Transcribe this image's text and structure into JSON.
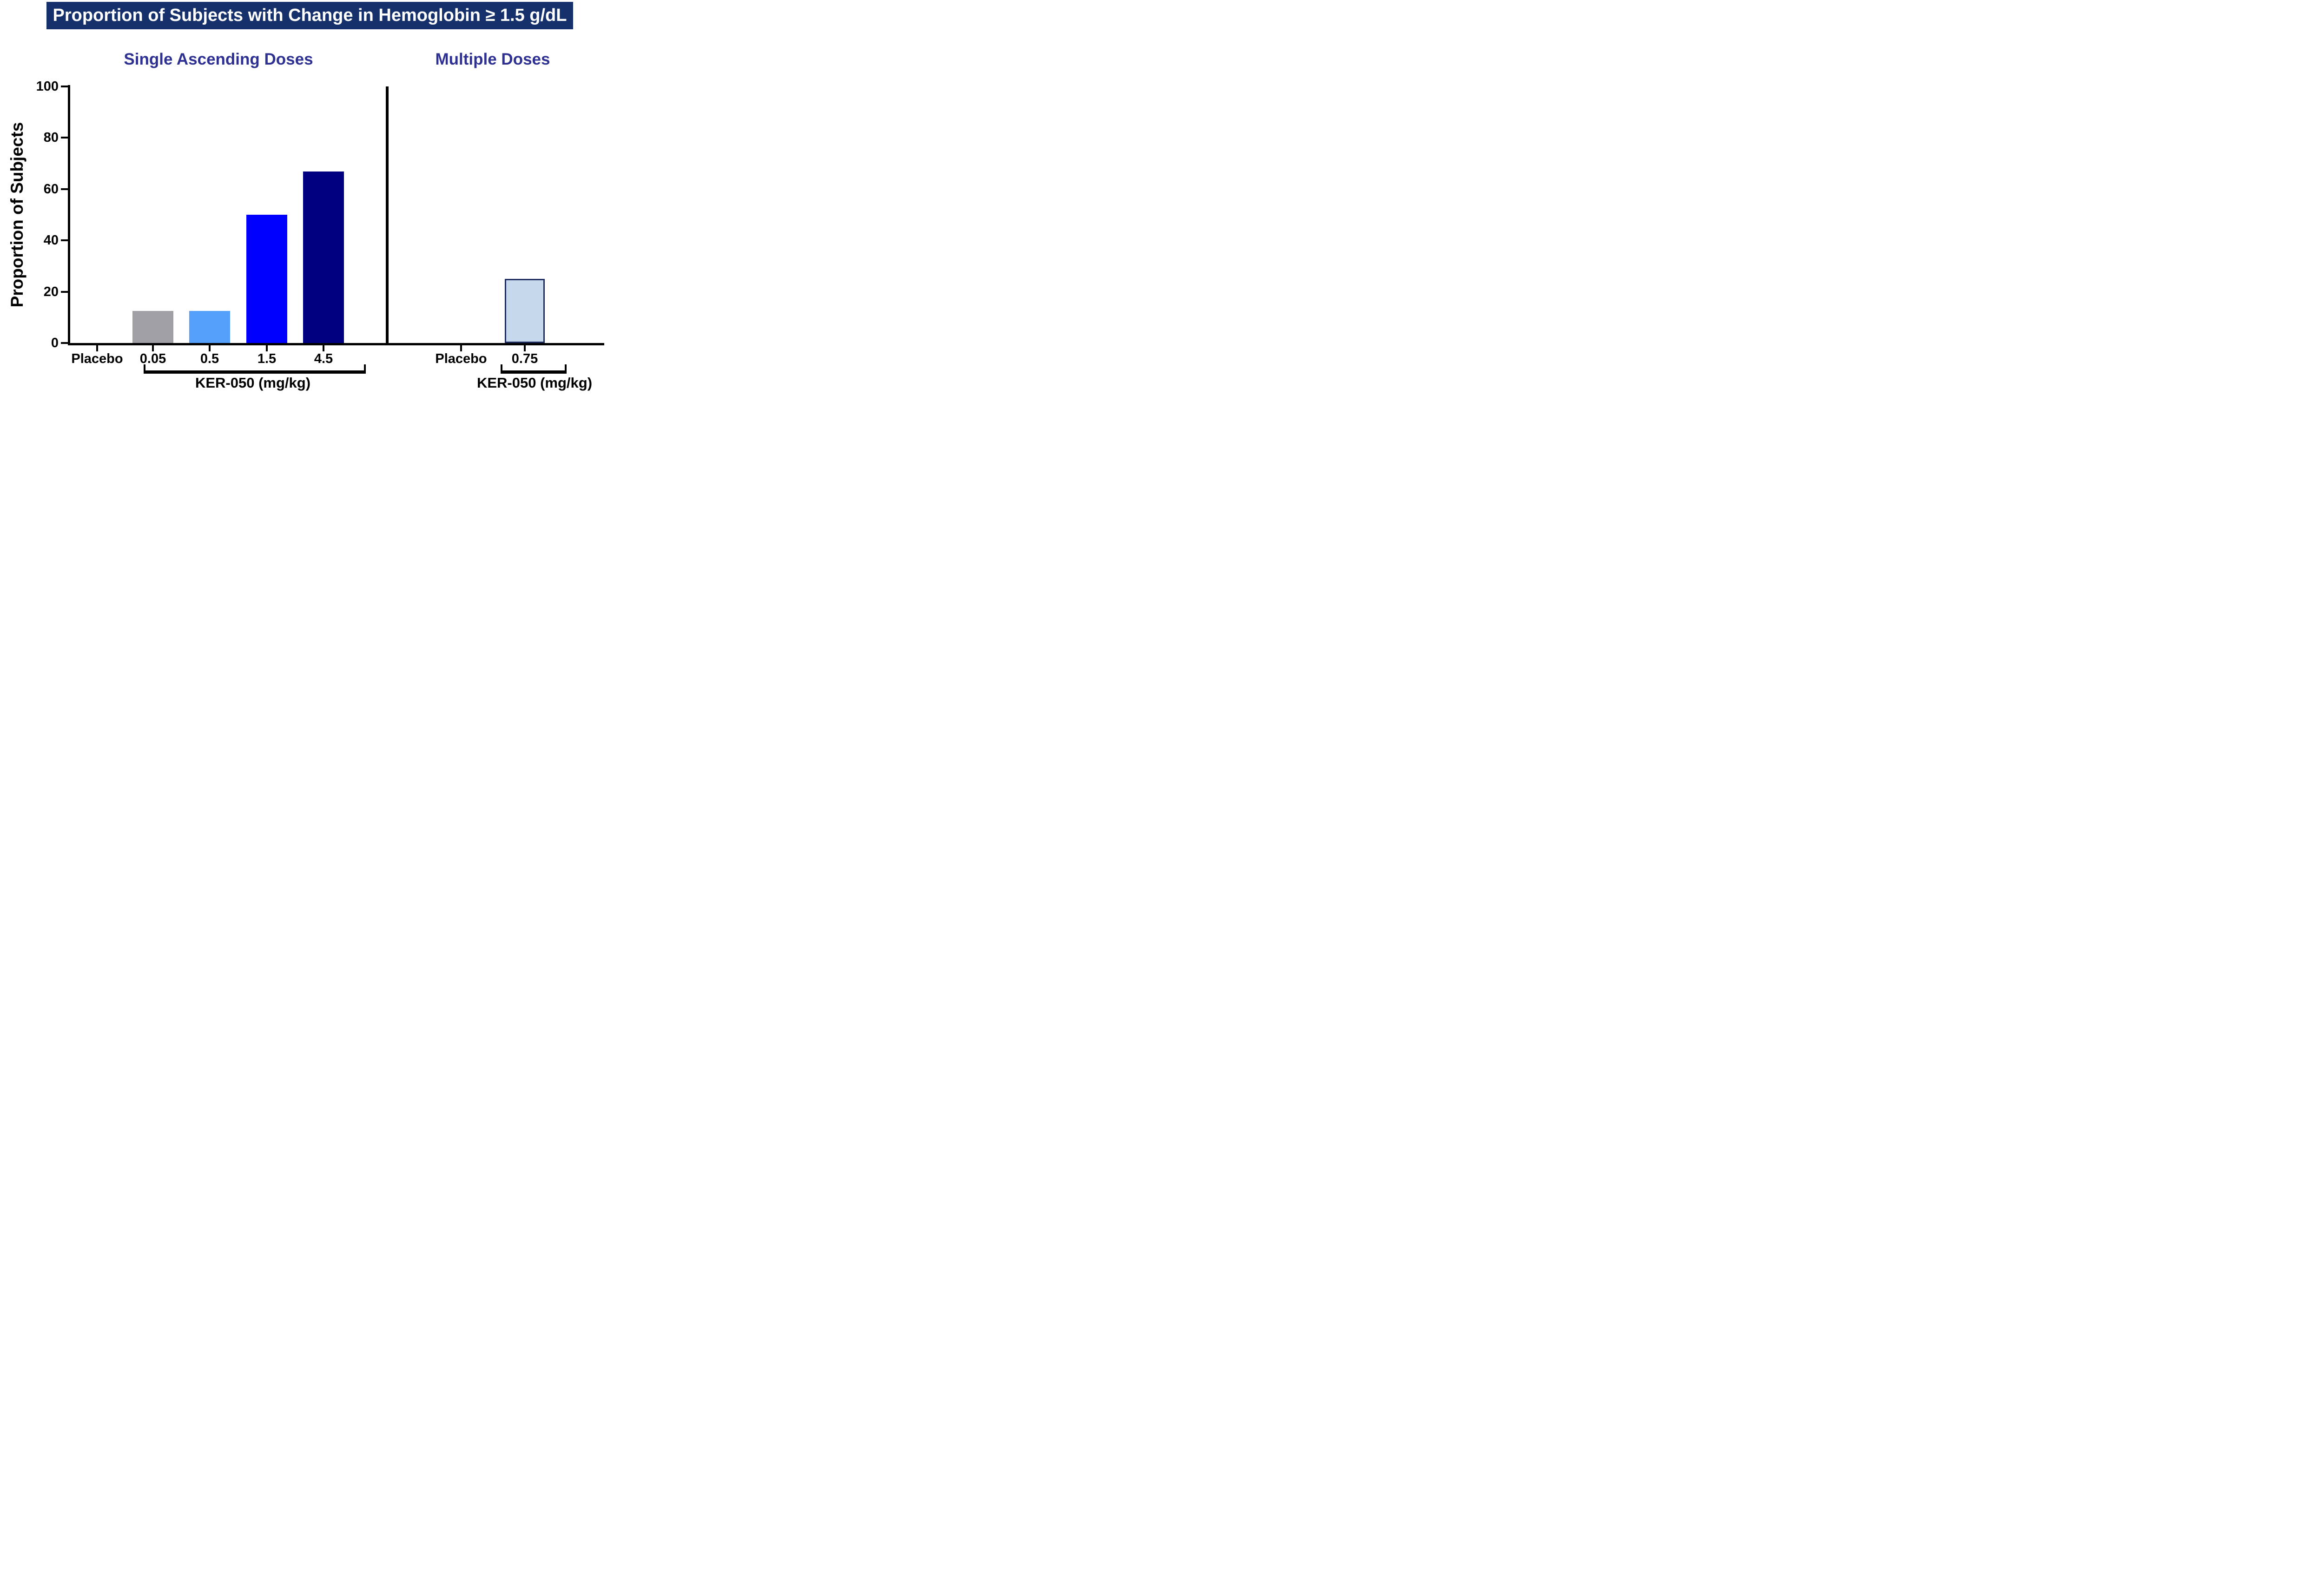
{
  "header": {
    "title": "Proportion of Subjects with Change in Hemoglobin ≥ 1.5 g/dL"
  },
  "colors": {
    "header_bg": "#16306B",
    "header_text": "#FFFFFF",
    "subtitle_text": "#2E3192",
    "axis": "#000000"
  },
  "chart_data": [
    {
      "type": "bar",
      "title": "Single Ascending Doses",
      "categories": [
        "Placebo",
        "0.05",
        "0.5",
        "1.5",
        "4.5"
      ],
      "values": [
        0,
        12.5,
        12.5,
        50,
        66.7
      ],
      "bar_colors": [
        null,
        "#A0A0A6",
        "#55A0FA",
        "#0000FF",
        "#000080"
      ],
      "bar_border_colors": [
        null,
        null,
        null,
        null,
        null
      ],
      "xlabel": "KER-050 (mg/kg)",
      "xlabel_group_members": [
        "0.05",
        "0.5",
        "1.5",
        "4.5"
      ],
      "ylabel": "Proportion of Subjects",
      "ylim": [
        0,
        100
      ],
      "yticks": [
        0,
        20,
        40,
        60,
        80,
        100
      ],
      "grid": false,
      "legend": "none"
    },
    {
      "type": "bar",
      "title": "Multiple Doses",
      "categories": [
        "Placebo",
        "0.75"
      ],
      "values": [
        0,
        25
      ],
      "bar_colors": [
        null,
        "#C5D8EC"
      ],
      "bar_border_colors": [
        null,
        "#1F2A5E"
      ],
      "xlabel": "KER-050 (mg/kg)",
      "xlabel_group_members": [
        "0.75"
      ],
      "ylabel": "Proportion of Subjects",
      "ylim": [
        0,
        100
      ],
      "yticks": [
        0,
        20,
        40,
        60,
        80,
        100
      ],
      "grid": false,
      "legend": "none"
    }
  ]
}
